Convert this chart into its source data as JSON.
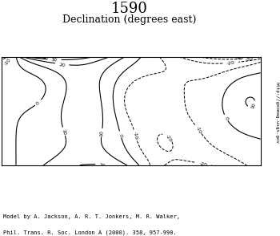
{
  "title": "1590",
  "subtitle": "Declination (degrees east)",
  "url_text": "http://geomag.usgs.gov",
  "citation_line1": "Model by A. Jackson, A. R. T. Jonkers, M. R. Walker,",
  "citation_line2": "Phil. Trans. R. Soc. London A (2000). 358, 957-990.",
  "background_color": "#ffffff",
  "title_fontsize": 13,
  "subtitle_fontsize": 9
}
